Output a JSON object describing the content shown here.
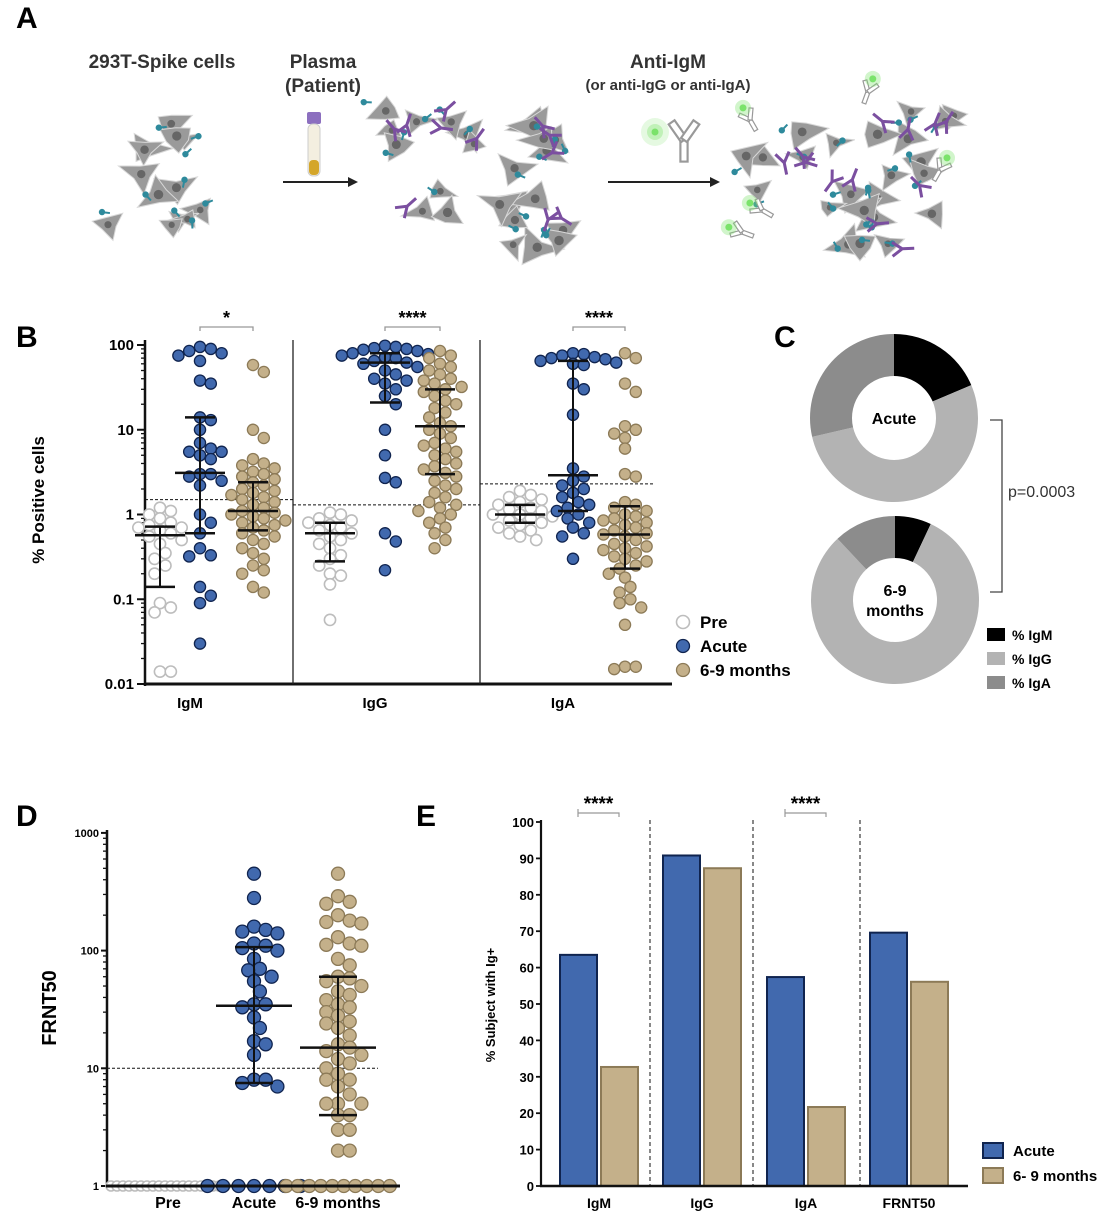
{
  "panel_labels": {
    "a": "A",
    "b": "B",
    "c": "C",
    "d": "D",
    "e": "E"
  },
  "panel_a": {
    "step1": "293T-Spike cells",
    "step2_line1": "Plasma",
    "step2_line2": "(Patient)",
    "step3_line1": "Anti-IgM",
    "step3_line2": "(or anti-IgG or anti-IgA)"
  },
  "colors": {
    "pre": "#bdbdbd",
    "acute": "#4169ae",
    "acute_edge": "#10244f",
    "late": "#c4b08a",
    "late_edge": "#8c7a57",
    "igm": "#000000",
    "igg": "#b3b3b3",
    "iga": "#8c8c8c",
    "spike": "#2e8a9c",
    "antibody": "#7b4fa0",
    "glow": "#7be36b"
  },
  "chart_data": [
    {
      "type": "scatter",
      "ylabel": "% Positive cells",
      "yscale": "log",
      "ylim": [
        0.01,
        100
      ],
      "yticks": [
        "0.01",
        "0.1",
        "1",
        "10",
        "100"
      ],
      "categories": [
        "IgM",
        "IgG",
        "IgA"
      ],
      "legend": [
        "Pre",
        "Acute",
        "6-9 months"
      ],
      "legend_position": "right",
      "groups": [
        {
          "category": "IgM",
          "threshold": 1.5,
          "significance": "*",
          "series": [
            {
              "name": "Pre",
              "median": 0.57,
              "iqr": [
                0.14,
                0.72
              ],
              "values": [
                1.2,
                1.1,
                1.0,
                0.9,
                0.8,
                0.75,
                0.7,
                0.7,
                0.65,
                0.6,
                0.55,
                0.5,
                0.45,
                0.35,
                0.3,
                0.25,
                0.2,
                0.09,
                0.08,
                0.07,
                0.014,
                0.014
              ]
            },
            {
              "name": "Acute",
              "median": 3.1,
              "iqr": [
                0.6,
                14
              ],
              "values": [
                95,
                90,
                85,
                80,
                75,
                65,
                38,
                35,
                14,
                13,
                10,
                7,
                6,
                5.5,
                5.5,
                5,
                4.5,
                3,
                3,
                2.8,
                2.5,
                2.2,
                1.0,
                0.8,
                0.6,
                0.4,
                0.33,
                0.32,
                0.14,
                0.11,
                0.09,
                0.03
              ]
            },
            {
              "name": "6-9 months",
              "median": 1.1,
              "iqr": [
                0.65,
                2.4
              ],
              "values": [
                58,
                48,
                10,
                8,
                4.5,
                4,
                3.8,
                3.5,
                3.2,
                3,
                2.8,
                2.6,
                2.4,
                2.2,
                2,
                1.9,
                1.8,
                1.7,
                1.6,
                1.5,
                1.4,
                1.3,
                1.2,
                1.1,
                1.05,
                1,
                0.95,
                0.9,
                0.85,
                0.8,
                0.75,
                0.7,
                0.65,
                0.6,
                0.55,
                0.5,
                0.45,
                0.4,
                0.35,
                0.3,
                0.25,
                0.22,
                0.2,
                0.14,
                0.12
              ]
            }
          ]
        },
        {
          "category": "IgG",
          "threshold": 1.3,
          "significance": "****",
          "series": [
            {
              "name": "Pre",
              "median": 0.6,
              "iqr": [
                0.28,
                0.8
              ],
              "values": [
                1.05,
                1.0,
                0.9,
                0.85,
                0.8,
                0.75,
                0.7,
                0.65,
                0.6,
                0.55,
                0.5,
                0.45,
                0.4,
                0.33,
                0.3,
                0.25,
                0.2,
                0.19,
                0.15,
                0.057
              ]
            },
            {
              "name": "Acute",
              "median": 62,
              "iqr": [
                21,
                80
              ],
              "values": [
                98,
                95,
                92,
                90,
                88,
                85,
                80,
                78,
                75,
                72,
                70,
                65,
                62,
                60,
                55,
                50,
                45,
                40,
                38,
                35,
                30,
                25,
                20,
                10,
                5,
                2.7,
                2.4,
                0.6,
                0.48,
                0.22
              ]
            },
            {
              "name": "6-9 months",
              "median": 11,
              "iqr": [
                3,
                30
              ],
              "values": [
                85,
                75,
                70,
                60,
                55,
                50,
                45,
                40,
                38,
                35,
                32,
                30,
                28,
                25,
                22,
                20,
                18,
                16,
                14,
                12,
                11,
                10,
                9,
                8,
                7,
                6.5,
                6,
                5.5,
                5,
                4.5,
                4,
                3.7,
                3.4,
                3.1,
                2.8,
                2.5,
                2.2,
                2,
                1.8,
                1.6,
                1.4,
                1.3,
                1.2,
                1.1,
                1,
                0.9,
                0.8,
                0.7,
                0.6,
                0.5,
                0.4
              ]
            }
          ]
        },
        {
          "category": "IgA",
          "threshold": 2.3,
          "significance": "****",
          "series": [
            {
              "name": "Pre",
              "median": 1.0,
              "iqr": [
                0.8,
                1.3
              ],
              "values": [
                1.9,
                1.7,
                1.6,
                1.5,
                1.4,
                1.3,
                1.2,
                1.15,
                1.1,
                1.0,
                1.0,
                0.95,
                0.9,
                0.85,
                0.8,
                0.75,
                0.7,
                0.65,
                0.6,
                0.55,
                0.5
              ]
            },
            {
              "name": "Acute",
              "median": 2.9,
              "iqr": [
                1.1,
                65
              ],
              "values": [
                80,
                78,
                75,
                72,
                70,
                68,
                65,
                62,
                60,
                58,
                35,
                30,
                15,
                3.5,
                2.8,
                2.5,
                2.2,
                2,
                1.8,
                1.6,
                1.4,
                1.3,
                1.2,
                1.1,
                1.0,
                0.9,
                0.8,
                0.7,
                0.6,
                0.55,
                0.3
              ]
            },
            {
              "name": "6-9 months",
              "median": 0.58,
              "iqr": [
                0.23,
                1.25
              ],
              "values": [
                80,
                70,
                35,
                28,
                11,
                10,
                9,
                8,
                6,
                3,
                2.8,
                1.4,
                1.3,
                1.2,
                1.1,
                1.0,
                0.95,
                0.9,
                0.85,
                0.8,
                0.75,
                0.7,
                0.65,
                0.6,
                0.58,
                0.55,
                0.5,
                0.45,
                0.42,
                0.4,
                0.38,
                0.35,
                0.32,
                0.3,
                0.28,
                0.25,
                0.23,
                0.2,
                0.18,
                0.14,
                0.12,
                0.1,
                0.09,
                0.08,
                0.05,
                0.016,
                0.016,
                0.015
              ]
            }
          ]
        }
      ]
    },
    {
      "type": "pie",
      "donut": true,
      "charts": [
        {
          "label_lines": [
            "Acute"
          ],
          "slices": [
            {
              "name": "% IgM",
              "value": 18.6
            },
            {
              "name": "% IgG",
              "value": 52.8
            },
            {
              "name": "% IgA",
              "value": 28.6
            }
          ]
        },
        {
          "label_lines": [
            "6-9",
            "months"
          ],
          "slices": [
            {
              "name": "% IgM",
              "value": 7
            },
            {
              "name": "% IgG",
              "value": 81
            },
            {
              "name": "% IgA",
              "value": 12
            }
          ]
        }
      ],
      "legend": [
        "% IgM",
        "% IgG",
        "% IgA"
      ],
      "pvalue": "p=0.0003"
    },
    {
      "type": "scatter",
      "ylabel": "FRNT50",
      "yscale": "log",
      "ylim": [
        1,
        1000
      ],
      "yticks": [
        "1",
        "10",
        "100",
        "1000"
      ],
      "categories": [
        "Pre",
        "Acute",
        "6-9 months"
      ],
      "threshold": 10,
      "series": [
        {
          "name": "Pre",
          "values": [
            1,
            1,
            1,
            1,
            1,
            1,
            1,
            1,
            1,
            1,
            1,
            1,
            1,
            1,
            1,
            1,
            1,
            1,
            1,
            1
          ]
        },
        {
          "name": "Acute",
          "median": 34,
          "iqr": [
            7.5,
            107
          ],
          "values": [
            450,
            280,
            160,
            150,
            145,
            140,
            115,
            110,
            105,
            100,
            85,
            70,
            68,
            60,
            55,
            45,
            35,
            35,
            33,
            27,
            22,
            17,
            16,
            13,
            8,
            8,
            7.5,
            7,
            1,
            1,
            1,
            1,
            1,
            1,
            1
          ]
        },
        {
          "name": "6-9 months",
          "median": 15,
          "iqr": [
            4,
            60
          ],
          "values": [
            450,
            290,
            260,
            250,
            200,
            180,
            175,
            170,
            130,
            115,
            112,
            110,
            85,
            75,
            60,
            58,
            55,
            50,
            45,
            42,
            38,
            35,
            33,
            30,
            28,
            25,
            24,
            22,
            19,
            16,
            15,
            14,
            13,
            12,
            11,
            10,
            9,
            8,
            8,
            7,
            6,
            5,
            5,
            5,
            4,
            4,
            3,
            3,
            2,
            2,
            1,
            1,
            1,
            1,
            1,
            1,
            1,
            1,
            1,
            1
          ]
        }
      ]
    },
    {
      "type": "bar",
      "ylabel": "% Subject with Ig+",
      "ylim": [
        0,
        100
      ],
      "yticks": [
        "0",
        "10",
        "20",
        "30",
        "40",
        "50",
        "60",
        "70",
        "80",
        "90",
        "100"
      ],
      "categories": [
        "IgM",
        "IgG",
        "IgA",
        "FRNT50"
      ],
      "series": [
        {
          "name": "Acute",
          "values": [
            63.5,
            90.8,
            57.4,
            69.6
          ]
        },
        {
          "name": "6- 9 months",
          "values": [
            32.7,
            87.3,
            21.7,
            56.1
          ]
        }
      ],
      "significance": [
        {
          "category": "IgM",
          "label": "****"
        },
        {
          "category": "IgA",
          "label": "****"
        }
      ],
      "legend_position": "bottom-right"
    }
  ]
}
